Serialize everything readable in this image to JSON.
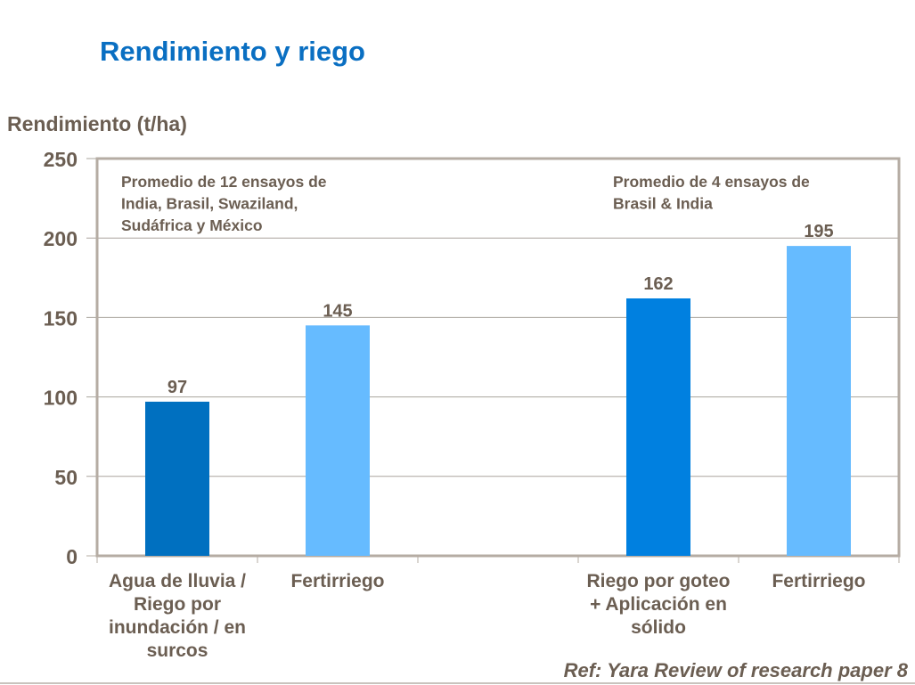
{
  "title": "Rendimiento y riego",
  "reference": "Ref: Yara Review of research paper 8",
  "chart_data": {
    "type": "bar",
    "title": "Rendimiento y riego",
    "ylabel": "Rendimiento (t/ha)",
    "xlabel": "",
    "ylim": [
      0,
      250
    ],
    "yticks": [
      0,
      50,
      100,
      150,
      200,
      250
    ],
    "grid": true,
    "categories": [
      [
        "Agua de lluvia /",
        "Riego por",
        "inundación / en",
        "surcos"
      ],
      [
        "Fertirriego"
      ],
      [],
      [
        "Riego por goteo",
        "+ Aplicación en",
        "sólido"
      ],
      [
        "Fertirriego"
      ]
    ],
    "values": [
      97,
      145,
      null,
      162,
      195
    ],
    "data_labels": [
      "97",
      "145",
      "",
      "162",
      "195"
    ],
    "colors": [
      "#0070c0",
      "#66bbff",
      "",
      "#0080e0",
      "#66bbff"
    ],
    "annotations": [
      [
        "Promedio de 12 ensayos de",
        "India, Brasil, Swaziland,",
        "Sudáfrica y México"
      ],
      [
        "Promedio de 4 ensayos de",
        "Brasil & India"
      ]
    ]
  }
}
